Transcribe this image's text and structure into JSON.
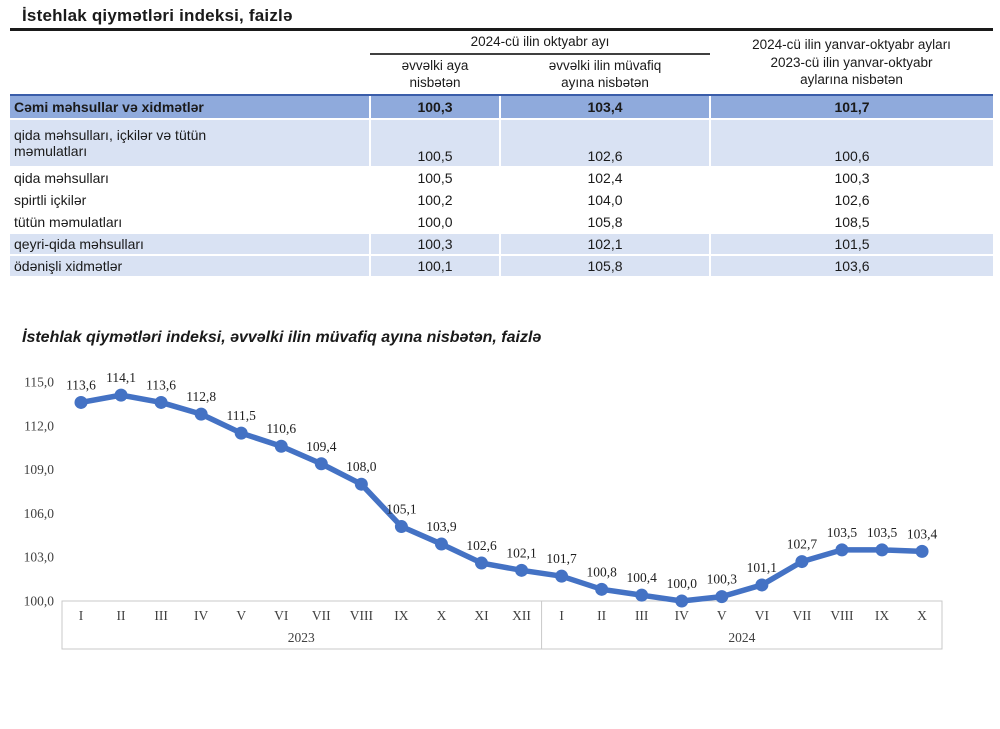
{
  "page": {
    "title": "İstehlak qiymətləri indeksi, faizlə"
  },
  "table": {
    "header": {
      "period_group": "2024-cü ilin oktyabr ayı",
      "col_prev_month": "əvvəlki aya\nnisbətən",
      "col_prev_year_month": "əvvəlki ilin müvafiq\nayına nisbətən",
      "col_jan_oct": "2024-cü ilin yanvar-oktyabr ayları\n2023-cü ilin yanvar-oktyabr\naylarına nisbətən"
    },
    "rows": [
      {
        "label": "Cəmi məhsullar və xidmətlər",
        "prev_month": "100,3",
        "prev_year_month": "103,4",
        "jan_oct": "101,7"
      },
      {
        "label": "qida məhsulları, içkilər və tütün\nməmulatları",
        "prev_month": "100,5",
        "prev_year_month": "102,6",
        "jan_oct": "100,6"
      },
      {
        "label": "qida məhsulları",
        "prev_month": "100,5",
        "prev_year_month": "102,4",
        "jan_oct": "100,3"
      },
      {
        "label": "spirtli içkilər",
        "prev_month": "100,2",
        "prev_year_month": "104,0",
        "jan_oct": "102,6"
      },
      {
        "label": "tütün məmulatları",
        "prev_month": "100,0",
        "prev_year_month": "105,8",
        "jan_oct": "108,5"
      },
      {
        "label": "qeyri-qida məhsulları",
        "prev_month": "100,3",
        "prev_year_month": "102,1",
        "jan_oct": "101,5"
      },
      {
        "label": "ödənişli xidmətlər",
        "prev_month": "100,1",
        "prev_year_month": "105,8",
        "jan_oct": "103,6"
      }
    ]
  },
  "chart_data": {
    "type": "line",
    "title": "İstehlak qiymətləri indeksi, əvvəlki ilin müvafiq ayına nisbətən, faizlə",
    "categories": [
      "I",
      "II",
      "III",
      "IV",
      "V",
      "VI",
      "VII",
      "VIII",
      "IX",
      "X",
      "XI",
      "XII",
      "I",
      "II",
      "III",
      "IV",
      "V",
      "VI",
      "VII",
      "VIII",
      "IX",
      "X"
    ],
    "year_groups": [
      {
        "label": "2023",
        "count": 12
      },
      {
        "label": "2024",
        "count": 10
      }
    ],
    "values": [
      113.6,
      114.1,
      113.6,
      112.8,
      111.5,
      110.6,
      109.4,
      108.0,
      105.1,
      103.9,
      102.6,
      102.1,
      101.7,
      100.8,
      100.4,
      100.0,
      100.3,
      101.1,
      102.7,
      103.5,
      103.5,
      103.4
    ],
    "ylim": [
      100,
      115
    ],
    "yticks": [
      100,
      103,
      106,
      109,
      112,
      115
    ],
    "decimal_separator": ",",
    "grid": false,
    "legend": false,
    "data_labels": true
  },
  "colors": {
    "line": "#4472C4",
    "total_row_bg": "#8FAADC",
    "shaded_row_bg": "#D9E2F3",
    "total_row_top_border": "#3A5DA9",
    "axis_box_border": "#C9C9C9",
    "axis_text": "#404040",
    "data_label_text": "#1F1F1F"
  }
}
